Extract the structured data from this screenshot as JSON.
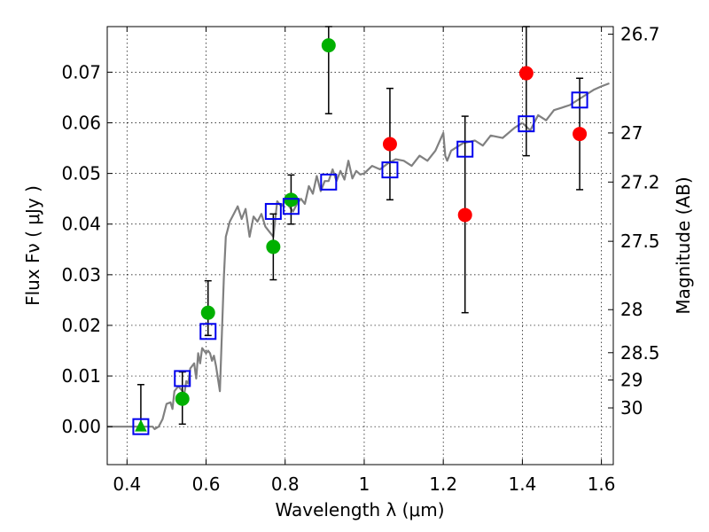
{
  "chart_data": {
    "type": "scatter",
    "xlabel": "Wavelength  λ (μm)",
    "ylabel": "Flux  Fν  ( μJy )",
    "ylabel_right": "Magnitude (AB)",
    "xlim": [
      0.35,
      1.63
    ],
    "ylim": [
      -0.0075,
      0.079
    ],
    "grid": true,
    "x_ticks": [
      0.4,
      0.6,
      0.8,
      1.0,
      1.2,
      1.4,
      1.6
    ],
    "x_tick_labels": [
      "0.4",
      "0.6",
      "0.8",
      "1",
      "1.2",
      "1.4",
      "1.6"
    ],
    "y_ticks": [
      0.0,
      0.01,
      0.02,
      0.03,
      0.04,
      0.05,
      0.06,
      0.07
    ],
    "y_tick_labels": [
      "0.00",
      "0.01",
      "0.02",
      "0.03",
      "0.04",
      "0.05",
      "0.06",
      "0.07"
    ],
    "mag_ticks": [
      {
        "label": "26.7",
        "flux": 0.0775
      },
      {
        "label": "27",
        "flux": 0.058
      },
      {
        "label": "27.2",
        "flux": 0.0483
      },
      {
        "label": "27.5",
        "flux": 0.0366
      },
      {
        "label": "28",
        "flux": 0.0231
      },
      {
        "label": "28.5",
        "flux": 0.0146
      },
      {
        "label": "29",
        "flux": 0.0092
      },
      {
        "label": "30",
        "flux": 0.0037
      }
    ],
    "series": [
      {
        "name": "observed_detections",
        "marker": "circle",
        "color": "#00b000",
        "points": [
          {
            "x": 0.54,
            "y": 0.0055,
            "ylo": 0.0005,
            "yhi": 0.0108
          },
          {
            "x": 0.605,
            "y": 0.0225,
            "ylo": 0.018,
            "yhi": 0.0288
          },
          {
            "x": 0.77,
            "y": 0.0355,
            "ylo": 0.029,
            "yhi": 0.042
          },
          {
            "x": 0.815,
            "y": 0.0448,
            "ylo": 0.04,
            "yhi": 0.0497
          },
          {
            "x": 0.91,
            "y": 0.0753,
            "ylo": 0.0618,
            "yhi": 0.079
          }
        ]
      },
      {
        "name": "observed_upper_limit",
        "marker": "triangle",
        "color": "#00b000",
        "points": [
          {
            "x": 0.435,
            "y": 0.0,
            "ylo": -0.0005,
            "yhi": 0.0083
          }
        ]
      },
      {
        "name": "observed_low_sn",
        "marker": "circle",
        "color": "#ff0000",
        "points": [
          {
            "x": 1.065,
            "y": 0.0558,
            "ylo": 0.0448,
            "yhi": 0.0668
          },
          {
            "x": 1.255,
            "y": 0.0418,
            "ylo": 0.0225,
            "yhi": 0.0613
          },
          {
            "x": 1.41,
            "y": 0.0698,
            "ylo": 0.0535,
            "yhi": 0.079
          },
          {
            "x": 1.545,
            "y": 0.0578,
            "ylo": 0.0468,
            "yhi": 0.0688
          }
        ]
      },
      {
        "name": "model_synthetic_photometry",
        "marker": "square",
        "color": "#0000ee",
        "points": [
          {
            "x": 0.435,
            "y": 0.0
          },
          {
            "x": 0.54,
            "y": 0.0095
          },
          {
            "x": 0.605,
            "y": 0.0188
          },
          {
            "x": 0.77,
            "y": 0.0425
          },
          {
            "x": 0.815,
            "y": 0.0435
          },
          {
            "x": 0.91,
            "y": 0.0483
          },
          {
            "x": 1.065,
            "y": 0.0507
          },
          {
            "x": 1.255,
            "y": 0.0548
          },
          {
            "x": 1.41,
            "y": 0.0598
          },
          {
            "x": 1.545,
            "y": 0.0645
          }
        ]
      }
    ],
    "model_spectrum": {
      "color": "#808080",
      "x": [
        0.35,
        0.465,
        0.47,
        0.48,
        0.49,
        0.5,
        0.51,
        0.515,
        0.52,
        0.53,
        0.54,
        0.545,
        0.55,
        0.555,
        0.56,
        0.57,
        0.575,
        0.58,
        0.585,
        0.59,
        0.6,
        0.605,
        0.61,
        0.615,
        0.62,
        0.625,
        0.63,
        0.635,
        0.64,
        0.645,
        0.65,
        0.66,
        0.67,
        0.68,
        0.69,
        0.7,
        0.71,
        0.72,
        0.73,
        0.74,
        0.75,
        0.76,
        0.77,
        0.78,
        0.79,
        0.8,
        0.81,
        0.82,
        0.83,
        0.84,
        0.85,
        0.86,
        0.87,
        0.88,
        0.89,
        0.9,
        0.91,
        0.92,
        0.93,
        0.94,
        0.95,
        0.96,
        0.97,
        0.98,
        0.99,
        1.0,
        1.02,
        1.04,
        1.06,
        1.08,
        1.1,
        1.12,
        1.14,
        1.16,
        1.18,
        1.2,
        1.205,
        1.21,
        1.22,
        1.25,
        1.28,
        1.3,
        1.32,
        1.35,
        1.38,
        1.4,
        1.42,
        1.44,
        1.46,
        1.48,
        1.5,
        1.52,
        1.55,
        1.58,
        1.6,
        1.62
      ],
      "y": [
        0.0,
        0.0,
        -0.0005,
        0.0,
        0.0015,
        0.0045,
        0.0048,
        0.0035,
        0.007,
        0.008,
        0.007,
        0.0065,
        0.009,
        0.0085,
        0.0115,
        0.0125,
        0.0095,
        0.0145,
        0.0125,
        0.0155,
        0.0145,
        0.015,
        0.0145,
        0.013,
        0.014,
        0.012,
        0.0095,
        0.007,
        0.0185,
        0.0295,
        0.0375,
        0.0405,
        0.042,
        0.0435,
        0.041,
        0.043,
        0.0375,
        0.0415,
        0.0405,
        0.042,
        0.0395,
        0.0385,
        0.0375,
        0.0445,
        0.0435,
        0.0445,
        0.0435,
        0.0425,
        0.044,
        0.045,
        0.044,
        0.0475,
        0.046,
        0.0495,
        0.0465,
        0.0485,
        0.0485,
        0.0508,
        0.0485,
        0.0505,
        0.0488,
        0.0525,
        0.049,
        0.0505,
        0.0498,
        0.05,
        0.0515,
        0.0508,
        0.052,
        0.0528,
        0.0525,
        0.0515,
        0.0535,
        0.0525,
        0.0545,
        0.058,
        0.0535,
        0.0525,
        0.0545,
        0.056,
        0.0565,
        0.0555,
        0.0575,
        0.057,
        0.059,
        0.06,
        0.0585,
        0.0615,
        0.0605,
        0.0625,
        0.063,
        0.0635,
        0.065,
        0.0665,
        0.0672,
        0.0678
      ]
    }
  }
}
